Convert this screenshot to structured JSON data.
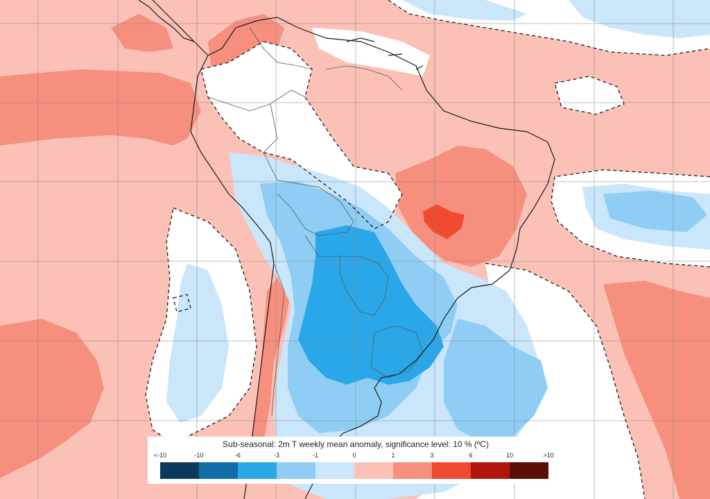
{
  "map": {
    "title": "Sub-seasonal: 2m T weekly mean anomaly, significance level: 10 % (ºC)",
    "legend": {
      "ticks": [
        "<-10",
        "-10",
        "-6",
        "-3",
        "-1",
        "0",
        "1",
        "3",
        "6",
        "10",
        ">10"
      ],
      "colors": [
        "#0d3a5c",
        "#0f6ea8",
        "#2aa7e8",
        "#8fcdf4",
        "#c9e6fb",
        "#fbc1b6",
        "#f78f7e",
        "#f04a30",
        "#b0160d",
        "#5b0e06"
      ]
    },
    "palette": {
      "ocean_warm": "#fbc1b6",
      "warm_strong": "#f78f7e",
      "warm_hot": "#f04a30",
      "neutral": "#ffffff",
      "cool_light": "#c9e6fb",
      "cool_mid": "#8fcdf4",
      "cool_strong": "#2aa7e8",
      "coast": "#1a1a1a",
      "border": "#5a5a5a",
      "grid": "#888888"
    }
  }
}
